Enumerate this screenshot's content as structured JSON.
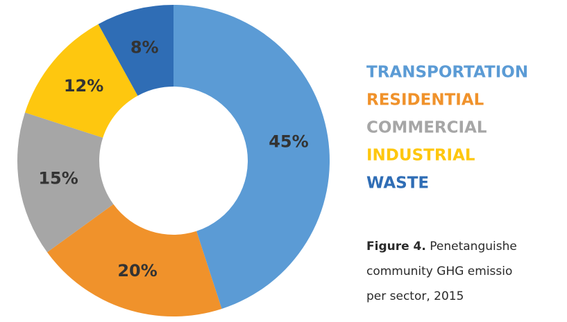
{
  "chart_data": {
    "type": "donut",
    "categories": [
      "TRANSPORTATION",
      "RESIDENTIAL",
      "COMMERCIAL",
      "INDUSTRIAL",
      "WASTE"
    ],
    "values": [
      45,
      20,
      15,
      12,
      8
    ],
    "value_labels": [
      "45%",
      "20%",
      "15%",
      "12%",
      "8%"
    ],
    "colors": [
      "#5b9bd5",
      "#f0922b",
      "#a6a6a6",
      "#fec70f",
      "#2f6db5"
    ],
    "caption": {
      "label": "Figure 4.",
      "lines": [
        "Penetanguishe",
        "community GHG emissio",
        "per sector, 2015"
      ]
    }
  }
}
